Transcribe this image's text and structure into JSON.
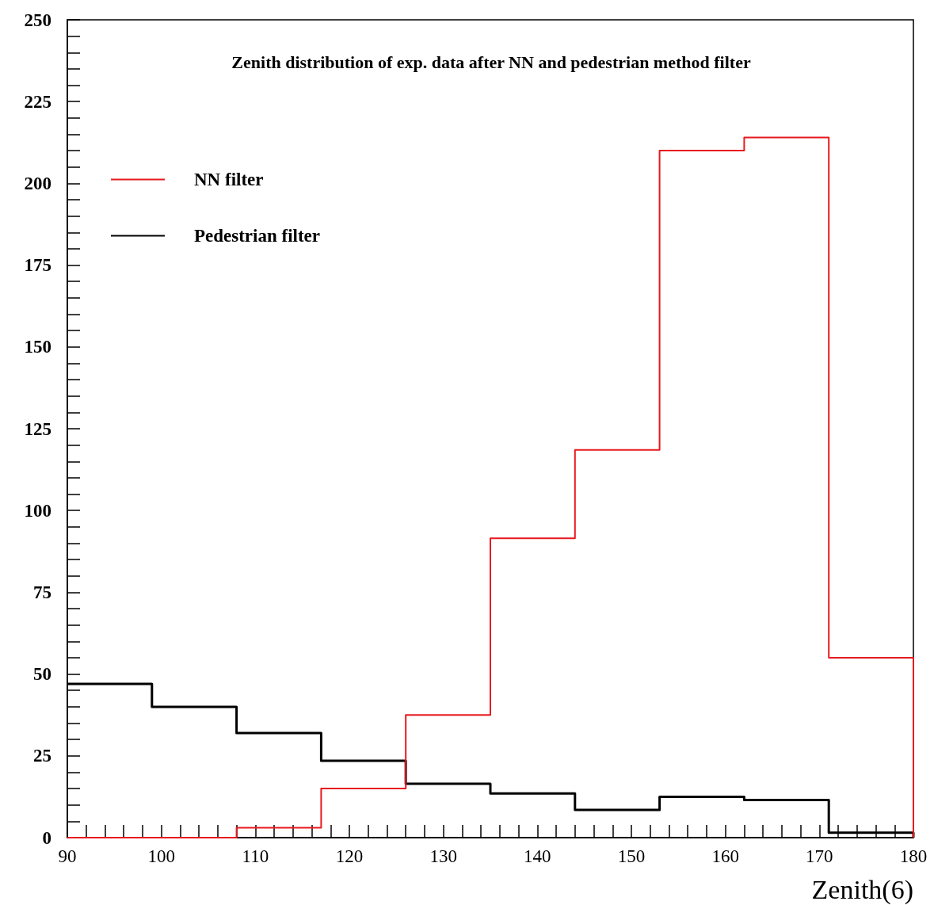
{
  "chart_data": {
    "type": "histogram",
    "title": "Zenith distribution of exp. data after NN and pedestrian method filter",
    "xlabel": "Zenith(6)",
    "bins": [
      90,
      99,
      108,
      117,
      126,
      135,
      144,
      153,
      162,
      171,
      180
    ],
    "series": [
      {
        "name": "NN filter",
        "color": "#e8191e",
        "values": [
          0,
          0,
          3,
          15,
          37.5,
          91.5,
          118.5,
          210,
          214,
          55
        ]
      },
      {
        "name": "Pedestrian filter",
        "color": "#000000",
        "values": [
          47,
          40,
          32,
          23.5,
          16.5,
          13.5,
          8.5,
          12.5,
          11.5,
          1.5
        ]
      }
    ],
    "xlim": [
      90,
      180
    ],
    "xticks": [
      90,
      {
        "value": 92,
        "label": null
      },
      {
        "value": 94,
        "label": null
      },
      {
        "value": 96,
        "label": null
      },
      {
        "value": 98,
        "label": null
      },
      100,
      {
        "value": 102,
        "label": null
      },
      {
        "value": 104,
        "label": null
      },
      {
        "value": 106,
        "label": null
      },
      {
        "value": 108,
        "label": null
      },
      110,
      {
        "value": 112,
        "label": null
      },
      {
        "value": 114,
        "label": null
      },
      {
        "value": 116,
        "label": null
      },
      {
        "value": 118,
        "label": null
      },
      120,
      {
        "value": 122,
        "label": null
      },
      {
        "value": 124,
        "label": null
      },
      {
        "value": 126,
        "label": null
      },
      {
        "value": 128,
        "label": null
      },
      130,
      {
        "value": 132,
        "label": null
      },
      {
        "value": 134,
        "label": null
      },
      {
        "value": 136,
        "label": null
      },
      {
        "value": 138,
        "label": null
      },
      140,
      {
        "value": 142,
        "label": null
      },
      {
        "value": 144,
        "label": null
      },
      {
        "value": 146,
        "label": null
      },
      {
        "value": 148,
        "label": null
      },
      150,
      {
        "value": 152,
        "label": null
      },
      {
        "value": 154,
        "label": null
      },
      {
        "value": 156,
        "label": null
      },
      {
        "value": 158,
        "label": null
      },
      160,
      {
        "value": 162,
        "label": null
      },
      {
        "value": 164,
        "label": null
      },
      {
        "value": 166,
        "label": null
      },
      {
        "value": 168,
        "label": null
      },
      170,
      {
        "value": 172,
        "label": null
      },
      {
        "value": 174,
        "label": null
      },
      {
        "value": 176,
        "label": null
      },
      {
        "value": 178,
        "label": null
      },
      180
    ],
    "ylim": [
      0,
      250
    ],
    "yticks": [
      0,
      {
        "value": 5,
        "label": null
      },
      {
        "value": 10,
        "label": null
      },
      {
        "value": 15,
        "label": null
      },
      {
        "value": 20,
        "label": null
      },
      25,
      {
        "value": 30,
        "label": null
      },
      {
        "value": 35,
        "label": null
      },
      {
        "value": 40,
        "label": null
      },
      {
        "value": 45,
        "label": null
      },
      50,
      {
        "value": 55,
        "label": null
      },
      {
        "value": 60,
        "label": null
      },
      {
        "value": 65,
        "label": null
      },
      {
        "value": 70,
        "label": null
      },
      75,
      {
        "value": 80,
        "label": null
      },
      {
        "value": 85,
        "label": null
      },
      {
        "value": 90,
        "label": null
      },
      {
        "value": 95,
        "label": null
      },
      100,
      {
        "value": 105,
        "label": null
      },
      {
        "value": 110,
        "label": null
      },
      {
        "value": 115,
        "label": null
      },
      {
        "value": 120,
        "label": null
      },
      125,
      {
        "value": 130,
        "label": null
      },
      {
        "value": 135,
        "label": null
      },
      {
        "value": 140,
        "label": null
      },
      {
        "value": 145,
        "label": null
      },
      150,
      {
        "value": 155,
        "label": null
      },
      {
        "value": 160,
        "label": null
      },
      {
        "value": 165,
        "label": null
      },
      {
        "value": 170,
        "label": null
      },
      175,
      {
        "value": 180,
        "label": null
      },
      {
        "value": 185,
        "label": null
      },
      {
        "value": 190,
        "label": null
      },
      {
        "value": 195,
        "label": null
      },
      200,
      {
        "value": 205,
        "label": null
      },
      {
        "value": 210,
        "label": null
      },
      {
        "value": 215,
        "label": null
      },
      {
        "value": 220,
        "label": null
      },
      225,
      {
        "value": 230,
        "label": null
      },
      {
        "value": 235,
        "label": null
      },
      {
        "value": 240,
        "label": null
      },
      {
        "value": 245,
        "label": null
      },
      250
    ],
    "grid": false,
    "legend": "top left"
  }
}
